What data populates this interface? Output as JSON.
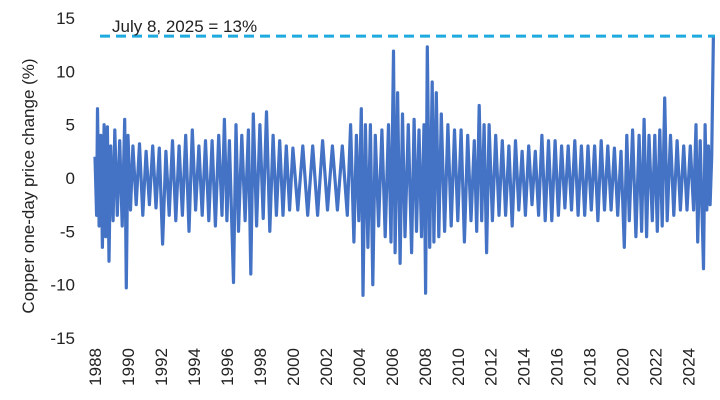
{
  "chart_data": {
    "type": "line",
    "title": "",
    "xlabel": "",
    "ylabel": "Copper one-day price change (%)",
    "xlim": [
      1988,
      2025.6
    ],
    "ylim": [
      -15,
      15
    ],
    "x_ticks": [
      "1988",
      "1990",
      "1992",
      "1994",
      "1996",
      "1998",
      "2000",
      "2002",
      "2004",
      "2006",
      "2008",
      "2010",
      "2012",
      "2014",
      "2016",
      "2018",
      "2020",
      "2022",
      "2024"
    ],
    "y_ticks": [
      "15",
      "10",
      "5",
      "0",
      "-5",
      "-10",
      "-15"
    ],
    "grid": false,
    "legend": "none",
    "reference_line": {
      "y": 13.3,
      "label": "July 8, 2025 = 13%",
      "color": "#1eaadf",
      "style": "dashed"
    },
    "series": [
      {
        "color": "#4472c4",
        "points": [
          [
            1988.0,
            2.0
          ],
          [
            1988.1,
            -3.5
          ],
          [
            1988.15,
            6.5
          ],
          [
            1988.25,
            -4.5
          ],
          [
            1988.35,
            4.0
          ],
          [
            1988.45,
            -6.5
          ],
          [
            1988.55,
            5.0
          ],
          [
            1988.65,
            -5.5
          ],
          [
            1988.75,
            4.8
          ],
          [
            1988.85,
            -7.8
          ],
          [
            1988.95,
            3.0
          ],
          [
            1989.1,
            -4.0
          ],
          [
            1989.2,
            4.5
          ],
          [
            1989.35,
            -3.5
          ],
          [
            1989.5,
            3.5
          ],
          [
            1989.65,
            -4.5
          ],
          [
            1989.8,
            5.5
          ],
          [
            1989.9,
            -10.3
          ],
          [
            1990.0,
            4.0
          ],
          [
            1990.15,
            -3.0
          ],
          [
            1990.3,
            3.0
          ],
          [
            1990.5,
            -2.5
          ],
          [
            1990.7,
            3.2
          ],
          [
            1990.9,
            -3.5
          ],
          [
            1991.1,
            2.5
          ],
          [
            1991.3,
            -2.5
          ],
          [
            1991.5,
            3.0
          ],
          [
            1991.7,
            -2.8
          ],
          [
            1991.9,
            2.8
          ],
          [
            1992.1,
            -6.2
          ],
          [
            1992.3,
            2.5
          ],
          [
            1992.5,
            -3.5
          ],
          [
            1992.7,
            3.5
          ],
          [
            1992.9,
            -4.0
          ],
          [
            1993.1,
            3.0
          ],
          [
            1993.3,
            -3.5
          ],
          [
            1993.5,
            4.0
          ],
          [
            1993.7,
            -5.0
          ],
          [
            1993.9,
            4.5
          ],
          [
            1994.1,
            -3.0
          ],
          [
            1994.3,
            3.0
          ],
          [
            1994.5,
            -3.5
          ],
          [
            1994.7,
            3.5
          ],
          [
            1994.9,
            -4.0
          ],
          [
            1995.1,
            3.5
          ],
          [
            1995.3,
            -4.5
          ],
          [
            1995.5,
            4.0
          ],
          [
            1995.7,
            -3.5
          ],
          [
            1995.85,
            5.5
          ],
          [
            1996.0,
            -4.0
          ],
          [
            1996.15,
            3.5
          ],
          [
            1996.4,
            -9.8
          ],
          [
            1996.55,
            5.0
          ],
          [
            1996.7,
            -5.0
          ],
          [
            1996.9,
            4.0
          ],
          [
            1997.1,
            -4.0
          ],
          [
            1997.3,
            4.5
          ],
          [
            1997.45,
            -9.0
          ],
          [
            1997.6,
            6.0
          ],
          [
            1997.8,
            -4.5
          ],
          [
            1998.0,
            5.0
          ],
          [
            1998.2,
            -3.8
          ],
          [
            1998.4,
            6.2
          ],
          [
            1998.6,
            -5.0
          ],
          [
            1998.8,
            4.0
          ],
          [
            1999.0,
            -3.5
          ],
          [
            1999.2,
            3.5
          ],
          [
            1999.4,
            -3.5
          ],
          [
            1999.6,
            3.0
          ],
          [
            1999.8,
            -3.0
          ],
          [
            2000.0,
            2.8
          ],
          [
            2000.3,
            -3.0
          ],
          [
            2000.6,
            3.0
          ],
          [
            2000.9,
            -3.5
          ],
          [
            2001.2,
            3.0
          ],
          [
            2001.5,
            -3.5
          ],
          [
            2001.8,
            3.5
          ],
          [
            2002.1,
            -3.0
          ],
          [
            2002.4,
            3.0
          ],
          [
            2002.7,
            -3.0
          ],
          [
            2003.0,
            3.0
          ],
          [
            2003.3,
            -3.5
          ],
          [
            2003.5,
            5.0
          ],
          [
            2003.7,
            -6.0
          ],
          [
            2003.85,
            4.0
          ],
          [
            2004.0,
            -4.0
          ],
          [
            2004.15,
            6.5
          ],
          [
            2004.25,
            -11.0
          ],
          [
            2004.4,
            5.0
          ],
          [
            2004.55,
            -6.5
          ],
          [
            2004.7,
            5.0
          ],
          [
            2004.85,
            -10.0
          ],
          [
            2005.0,
            4.0
          ],
          [
            2005.2,
            -4.5
          ],
          [
            2005.4,
            4.5
          ],
          [
            2005.6,
            -5.5
          ],
          [
            2005.8,
            5.0
          ],
          [
            2005.95,
            -6.0
          ],
          [
            2006.1,
            11.9
          ],
          [
            2006.2,
            -7.0
          ],
          [
            2006.35,
            8.0
          ],
          [
            2006.5,
            -8.0
          ],
          [
            2006.65,
            6.0
          ],
          [
            2006.8,
            -5.5
          ],
          [
            2007.0,
            5.0
          ],
          [
            2007.2,
            -7.0
          ],
          [
            2007.35,
            5.5
          ],
          [
            2007.5,
            -5.0
          ],
          [
            2007.65,
            4.5
          ],
          [
            2007.8,
            -5.5
          ],
          [
            2007.95,
            5.0
          ],
          [
            2008.05,
            -10.8
          ],
          [
            2008.15,
            12.3
          ],
          [
            2008.3,
            -6.5
          ],
          [
            2008.45,
            9.0
          ],
          [
            2008.55,
            -6.0
          ],
          [
            2008.7,
            8.0
          ],
          [
            2008.85,
            -5.5
          ],
          [
            2009.0,
            6.0
          ],
          [
            2009.2,
            -5.0
          ],
          [
            2009.4,
            5.0
          ],
          [
            2009.6,
            -4.5
          ],
          [
            2009.8,
            4.5
          ],
          [
            2010.0,
            -4.0
          ],
          [
            2010.2,
            4.5
          ],
          [
            2010.4,
            -6.0
          ],
          [
            2010.6,
            4.0
          ],
          [
            2010.8,
            -4.0
          ],
          [
            2011.0,
            3.5
          ],
          [
            2011.15,
            -5.0
          ],
          [
            2011.3,
            6.8
          ],
          [
            2011.45,
            -4.0
          ],
          [
            2011.6,
            5.0
          ],
          [
            2011.75,
            -7.0
          ],
          [
            2011.9,
            5.0
          ],
          [
            2012.1,
            -4.0
          ],
          [
            2012.3,
            4.0
          ],
          [
            2012.5,
            -3.5
          ],
          [
            2012.7,
            3.5
          ],
          [
            2012.9,
            -3.5
          ],
          [
            2013.1,
            3.0
          ],
          [
            2013.3,
            -4.5
          ],
          [
            2013.5,
            3.5
          ],
          [
            2013.7,
            -3.0
          ],
          [
            2013.9,
            2.5
          ],
          [
            2014.1,
            -3.5
          ],
          [
            2014.3,
            3.0
          ],
          [
            2014.5,
            -2.5
          ],
          [
            2014.7,
            2.5
          ],
          [
            2014.9,
            -3.5
          ],
          [
            2015.1,
            4.0
          ],
          [
            2015.3,
            -4.0
          ],
          [
            2015.5,
            3.5
          ],
          [
            2015.7,
            -4.0
          ],
          [
            2015.9,
            3.5
          ],
          [
            2016.1,
            -3.5
          ],
          [
            2016.3,
            3.0
          ],
          [
            2016.5,
            -2.8
          ],
          [
            2016.7,
            3.0
          ],
          [
            2016.9,
            -3.0
          ],
          [
            2017.1,
            3.5
          ],
          [
            2017.3,
            -3.5
          ],
          [
            2017.5,
            3.0
          ],
          [
            2017.7,
            -3.5
          ],
          [
            2017.9,
            3.0
          ],
          [
            2018.1,
            -3.0
          ],
          [
            2018.3,
            3.0
          ],
          [
            2018.5,
            -4.0
          ],
          [
            2018.7,
            3.5
          ],
          [
            2018.9,
            -3.0
          ],
          [
            2019.1,
            3.0
          ],
          [
            2019.3,
            -3.0
          ],
          [
            2019.5,
            2.8
          ],
          [
            2019.7,
            -3.5
          ],
          [
            2019.9,
            2.5
          ],
          [
            2020.1,
            -6.5
          ],
          [
            2020.25,
            4.0
          ],
          [
            2020.4,
            -4.0
          ],
          [
            2020.6,
            4.5
          ],
          [
            2020.8,
            -5.5
          ],
          [
            2021.0,
            4.0
          ],
          [
            2021.15,
            -5.0
          ],
          [
            2021.3,
            5.5
          ],
          [
            2021.45,
            -5.5
          ],
          [
            2021.6,
            4.0
          ],
          [
            2021.8,
            -4.0
          ],
          [
            2021.95,
            4.0
          ],
          [
            2022.1,
            -5.0
          ],
          [
            2022.25,
            4.5
          ],
          [
            2022.4,
            -4.5
          ],
          [
            2022.55,
            7.5
          ],
          [
            2022.7,
            -4.0
          ],
          [
            2022.9,
            4.0
          ],
          [
            2023.1,
            -3.5
          ],
          [
            2023.3,
            3.5
          ],
          [
            2023.5,
            -3.0
          ],
          [
            2023.7,
            3.0
          ],
          [
            2023.9,
            -3.0
          ],
          [
            2024.1,
            3.0
          ],
          [
            2024.3,
            -3.0
          ],
          [
            2024.45,
            5.0
          ],
          [
            2024.55,
            -6.0
          ],
          [
            2024.7,
            3.5
          ],
          [
            2024.9,
            -8.5
          ],
          [
            2025.0,
            5.0
          ],
          [
            2025.1,
            -3.0
          ],
          [
            2025.2,
            3.0
          ],
          [
            2025.3,
            -2.5
          ],
          [
            2025.4,
            2.0
          ],
          [
            2025.5,
            13.3
          ]
        ]
      }
    ]
  }
}
